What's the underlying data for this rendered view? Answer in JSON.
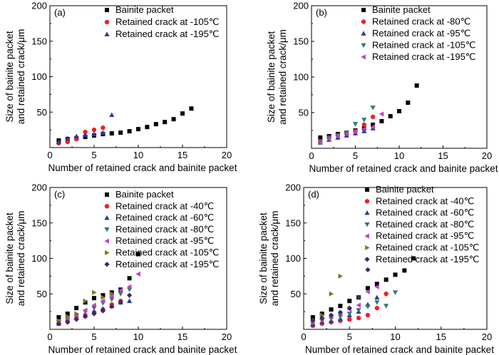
{
  "chart_data": [
    {
      "type": "scatter",
      "panel": "(a)",
      "xlabel": "Number of retained crack and bainite packet",
      "ylabel": "Size of bainite packet and retained crack/μm",
      "ylabel_lines": [
        "Size of bainite packet",
        "and retained crack/μm"
      ],
      "xlim": [
        0,
        20
      ],
      "ylim": [
        0,
        200
      ],
      "xticks": [
        "0",
        "5",
        "10",
        "15",
        "20"
      ],
      "yticks": [
        "50",
        "100",
        "150",
        "200"
      ],
      "series": [
        {
          "name": "Bainite packet",
          "marker": "square",
          "color": "#000000",
          "points": [
            [
              1,
              10
            ],
            [
              2,
              12
            ],
            [
              3,
              13
            ],
            [
              4,
              15
            ],
            [
              5,
              17
            ],
            [
              6,
              19
            ],
            [
              7,
              20
            ],
            [
              8,
              21
            ],
            [
              9,
              23
            ],
            [
              10,
              26
            ],
            [
              11,
              29
            ],
            [
              12,
              33
            ],
            [
              13,
              36
            ],
            [
              14,
              40
            ],
            [
              15,
              48
            ],
            [
              16,
              55
            ]
          ]
        },
        {
          "name": "Retained crack at -105℃",
          "marker": "circle",
          "color": "#ee2222",
          "points": [
            [
              1,
              6
            ],
            [
              2,
              8
            ],
            [
              3,
              12
            ],
            [
              4,
              22
            ],
            [
              5,
              25
            ],
            [
              6,
              28
            ]
          ]
        },
        {
          "name": "Retained crack at -195℃",
          "marker": "triangle-up",
          "color": "#2b3a9c",
          "points": [
            [
              1,
              8
            ],
            [
              2,
              13
            ],
            [
              3,
              16
            ],
            [
              4,
              18
            ],
            [
              5,
              19
            ],
            [
              6,
              21
            ],
            [
              7,
              46
            ]
          ]
        }
      ]
    },
    {
      "type": "scatter",
      "panel": "(b)",
      "xlabel": "Number of retained crack and bainite packet",
      "ylabel": "Size of bainite packet and retained crack/μm",
      "ylabel_lines": [
        "Size of bainite packet",
        "and retained crack/μm"
      ],
      "xlim": [
        0,
        20
      ],
      "ylim": [
        0,
        200
      ],
      "xticks": [
        "0",
        "5",
        "10",
        "15",
        "20"
      ],
      "yticks": [
        "50",
        "100",
        "150",
        "200"
      ],
      "series": [
        {
          "name": "Bainite packet",
          "marker": "square",
          "color": "#000000",
          "points": [
            [
              1,
              15
            ],
            [
              2,
              17
            ],
            [
              3,
              20
            ],
            [
              4,
              22
            ],
            [
              5,
              25
            ],
            [
              6,
              28
            ],
            [
              7,
              33
            ],
            [
              8,
              38
            ],
            [
              9,
              45
            ],
            [
              10,
              52
            ],
            [
              11,
              64
            ],
            [
              12,
              88
            ]
          ]
        },
        {
          "name": "Retained crack at -80℃",
          "marker": "circle",
          "color": "#ee2222",
          "points": [
            [
              1,
              9
            ],
            [
              2,
              15
            ],
            [
              3,
              18
            ],
            [
              4,
              20
            ],
            [
              5,
              24
            ],
            [
              6,
              33
            ],
            [
              7,
              44
            ]
          ]
        },
        {
          "name": "Retained crack at -95℃",
          "marker": "triangle-up",
          "color": "#2b3a9c",
          "points": [
            [
              1,
              8
            ],
            [
              2,
              12
            ],
            [
              3,
              15
            ],
            [
              4,
              18
            ],
            [
              5,
              21
            ],
            [
              6,
              24
            ],
            [
              7,
              28
            ]
          ]
        },
        {
          "name": "Retained crack at -105℃",
          "marker": "triangle-down",
          "color": "#2e7d6e",
          "points": [
            [
              1,
              10
            ],
            [
              2,
              14
            ],
            [
              3,
              18
            ],
            [
              4,
              22
            ],
            [
              5,
              34
            ],
            [
              6,
              40
            ],
            [
              7,
              57
            ]
          ]
        },
        {
          "name": "Retained crack at -195℃",
          "marker": "triangle-left",
          "color": "#c040c8",
          "points": [
            [
              1,
              8
            ],
            [
              2,
              13
            ],
            [
              3,
              17
            ],
            [
              4,
              20
            ],
            [
              5,
              23
            ],
            [
              6,
              27
            ],
            [
              7,
              30
            ],
            [
              8,
              48
            ]
          ]
        }
      ]
    },
    {
      "type": "scatter",
      "panel": "(c)",
      "xlabel": "Number of retained crack and bainite packet",
      "ylabel": "Size of bainite packet and retained crack/μm",
      "ylabel_lines": [
        "Size of bainite packet",
        "and retained crack/μm"
      ],
      "xlim": [
        0,
        20
      ],
      "ylim": [
        0,
        200
      ],
      "xticks": [
        "0",
        "5",
        "10",
        "15",
        "20"
      ],
      "yticks": [
        "50",
        "100",
        "150",
        "200"
      ],
      "series": [
        {
          "name": "Bainite packet",
          "marker": "square",
          "color": "#000000",
          "points": [
            [
              1,
              17
            ],
            [
              2,
              22
            ],
            [
              3,
              30
            ],
            [
              4,
              38
            ],
            [
              5,
              44
            ],
            [
              6,
              48
            ],
            [
              7,
              52
            ],
            [
              8,
              56
            ],
            [
              9,
              72
            ],
            [
              10,
              106
            ]
          ]
        },
        {
          "name": "Retained crack at -40℃",
          "marker": "circle",
          "color": "#ee2222",
          "points": [
            [
              1,
              8
            ],
            [
              2,
              12
            ],
            [
              3,
              16
            ],
            [
              4,
              20
            ],
            [
              5,
              24
            ],
            [
              6,
              28
            ],
            [
              7,
              35
            ],
            [
              8,
              40
            ]
          ]
        },
        {
          "name": "Retained crack at -60℃",
          "marker": "triangle-up",
          "color": "#2b3a9c",
          "points": [
            [
              1,
              8
            ],
            [
              2,
              12
            ],
            [
              3,
              16
            ],
            [
              4,
              20
            ],
            [
              5,
              25
            ],
            [
              6,
              29
            ],
            [
              7,
              33
            ],
            [
              8,
              38
            ],
            [
              9,
              40
            ]
          ]
        },
        {
          "name": "Retained crack at -80℃",
          "marker": "triangle-down",
          "color": "#2e7d6e",
          "points": [
            [
              1,
              10
            ],
            [
              2,
              14
            ],
            [
              3,
              18
            ],
            [
              4,
              25
            ],
            [
              5,
              30
            ],
            [
              6,
              37
            ],
            [
              7,
              42
            ],
            [
              8,
              50
            ],
            [
              9,
              56
            ]
          ]
        },
        {
          "name": "Retained crack at -95℃",
          "marker": "triangle-left",
          "color": "#c040c8",
          "points": [
            [
              1,
              11
            ],
            [
              2,
              15
            ],
            [
              3,
              20
            ],
            [
              4,
              27
            ],
            [
              5,
              34
            ],
            [
              6,
              40
            ],
            [
              7,
              46
            ],
            [
              8,
              55
            ],
            [
              9,
              60
            ],
            [
              10,
              78
            ]
          ]
        },
        {
          "name": "Retained crack at -105℃",
          "marker": "triangle-right",
          "color": "#7a7a1e",
          "points": [
            [
              1,
              12
            ],
            [
              2,
              18
            ],
            [
              3,
              22
            ],
            [
              4,
              40
            ],
            [
              5,
              52
            ],
            [
              6,
              45
            ],
            [
              7,
              50
            ]
          ]
        },
        {
          "name": "Retained crack at -195℃",
          "marker": "diamond",
          "color": "#3a2a66",
          "points": [
            [
              1,
              8
            ],
            [
              2,
              10
            ],
            [
              3,
              14
            ],
            [
              4,
              18
            ],
            [
              5,
              22
            ],
            [
              6,
              26
            ],
            [
              7,
              32
            ],
            [
              8,
              38
            ],
            [
              9,
              48
            ]
          ]
        }
      ]
    },
    {
      "type": "scatter",
      "panel": "(d)",
      "xlabel": "Number of retained crack and bainite packet",
      "ylabel": "Size of bainite packet and retained crack/μm",
      "ylabel_lines": [
        "Size of bainite packet",
        "and retained crack/μm"
      ],
      "xlim": [
        0,
        20
      ],
      "ylim": [
        0,
        200
      ],
      "xticks": [
        "0",
        "5",
        "10",
        "15",
        "20"
      ],
      "yticks": [
        "50",
        "100",
        "150",
        "200"
      ],
      "series": [
        {
          "name": "Bainite packet",
          "marker": "square",
          "color": "#000000",
          "points": [
            [
              1,
              17
            ],
            [
              2,
              22
            ],
            [
              3,
              28
            ],
            [
              4,
              33
            ],
            [
              5,
              40
            ],
            [
              6,
              45
            ],
            [
              7,
              58
            ],
            [
              8,
              64
            ],
            [
              9,
              70
            ],
            [
              10,
              77
            ],
            [
              11,
              83
            ],
            [
              12,
              100
            ]
          ]
        },
        {
          "name": "Retained crack at -40℃",
          "marker": "circle",
          "color": "#ee2222",
          "points": [
            [
              1,
              5
            ],
            [
              2,
              8
            ],
            [
              3,
              10
            ],
            [
              4,
              12
            ],
            [
              5,
              14
            ],
            [
              6,
              16
            ],
            [
              7,
              20
            ],
            [
              8,
              30
            ],
            [
              9,
              50
            ]
          ]
        },
        {
          "name": "Retained crack at -60℃",
          "marker": "triangle-up",
          "color": "#2b3a9c",
          "points": [
            [
              1,
              7
            ],
            [
              2,
              10
            ],
            [
              3,
              12
            ],
            [
              4,
              15
            ],
            [
              5,
              20
            ],
            [
              6,
              25
            ],
            [
              7,
              35
            ],
            [
              8,
              45
            ]
          ]
        },
        {
          "name": "Retained crack at -80℃",
          "marker": "triangle-down",
          "color": "#2e7d6e",
          "points": [
            [
              1,
              9
            ],
            [
              2,
              12
            ],
            [
              3,
              15
            ],
            [
              4,
              18
            ],
            [
              5,
              22
            ],
            [
              6,
              27
            ],
            [
              7,
              32
            ],
            [
              8,
              38
            ],
            [
              9,
              33
            ],
            [
              10,
              52
            ]
          ]
        },
        {
          "name": "Retained crack at -95℃",
          "marker": "triangle-left",
          "color": "#c040c8",
          "points": [
            [
              1,
              10
            ],
            [
              2,
              14
            ],
            [
              3,
              18
            ],
            [
              4,
              22
            ],
            [
              5,
              28
            ],
            [
              6,
              34
            ],
            [
              7,
              53
            ],
            [
              8,
              60
            ]
          ]
        },
        {
          "name": "Retained crack at -105℃",
          "marker": "triangle-right",
          "color": "#7a7a1e",
          "points": [
            [
              1,
              11
            ],
            [
              2,
              20
            ],
            [
              3,
              50
            ],
            [
              4,
              75
            ]
          ]
        },
        {
          "name": "Retained crack at -195℃",
          "marker": "diamond",
          "color": "#3a2a66",
          "points": [
            [
              1,
              13
            ],
            [
              2,
              16
            ],
            [
              3,
              20
            ],
            [
              4,
              24
            ],
            [
              5,
              30
            ],
            [
              6,
              45
            ],
            [
              7,
              84
            ]
          ]
        }
      ]
    }
  ]
}
